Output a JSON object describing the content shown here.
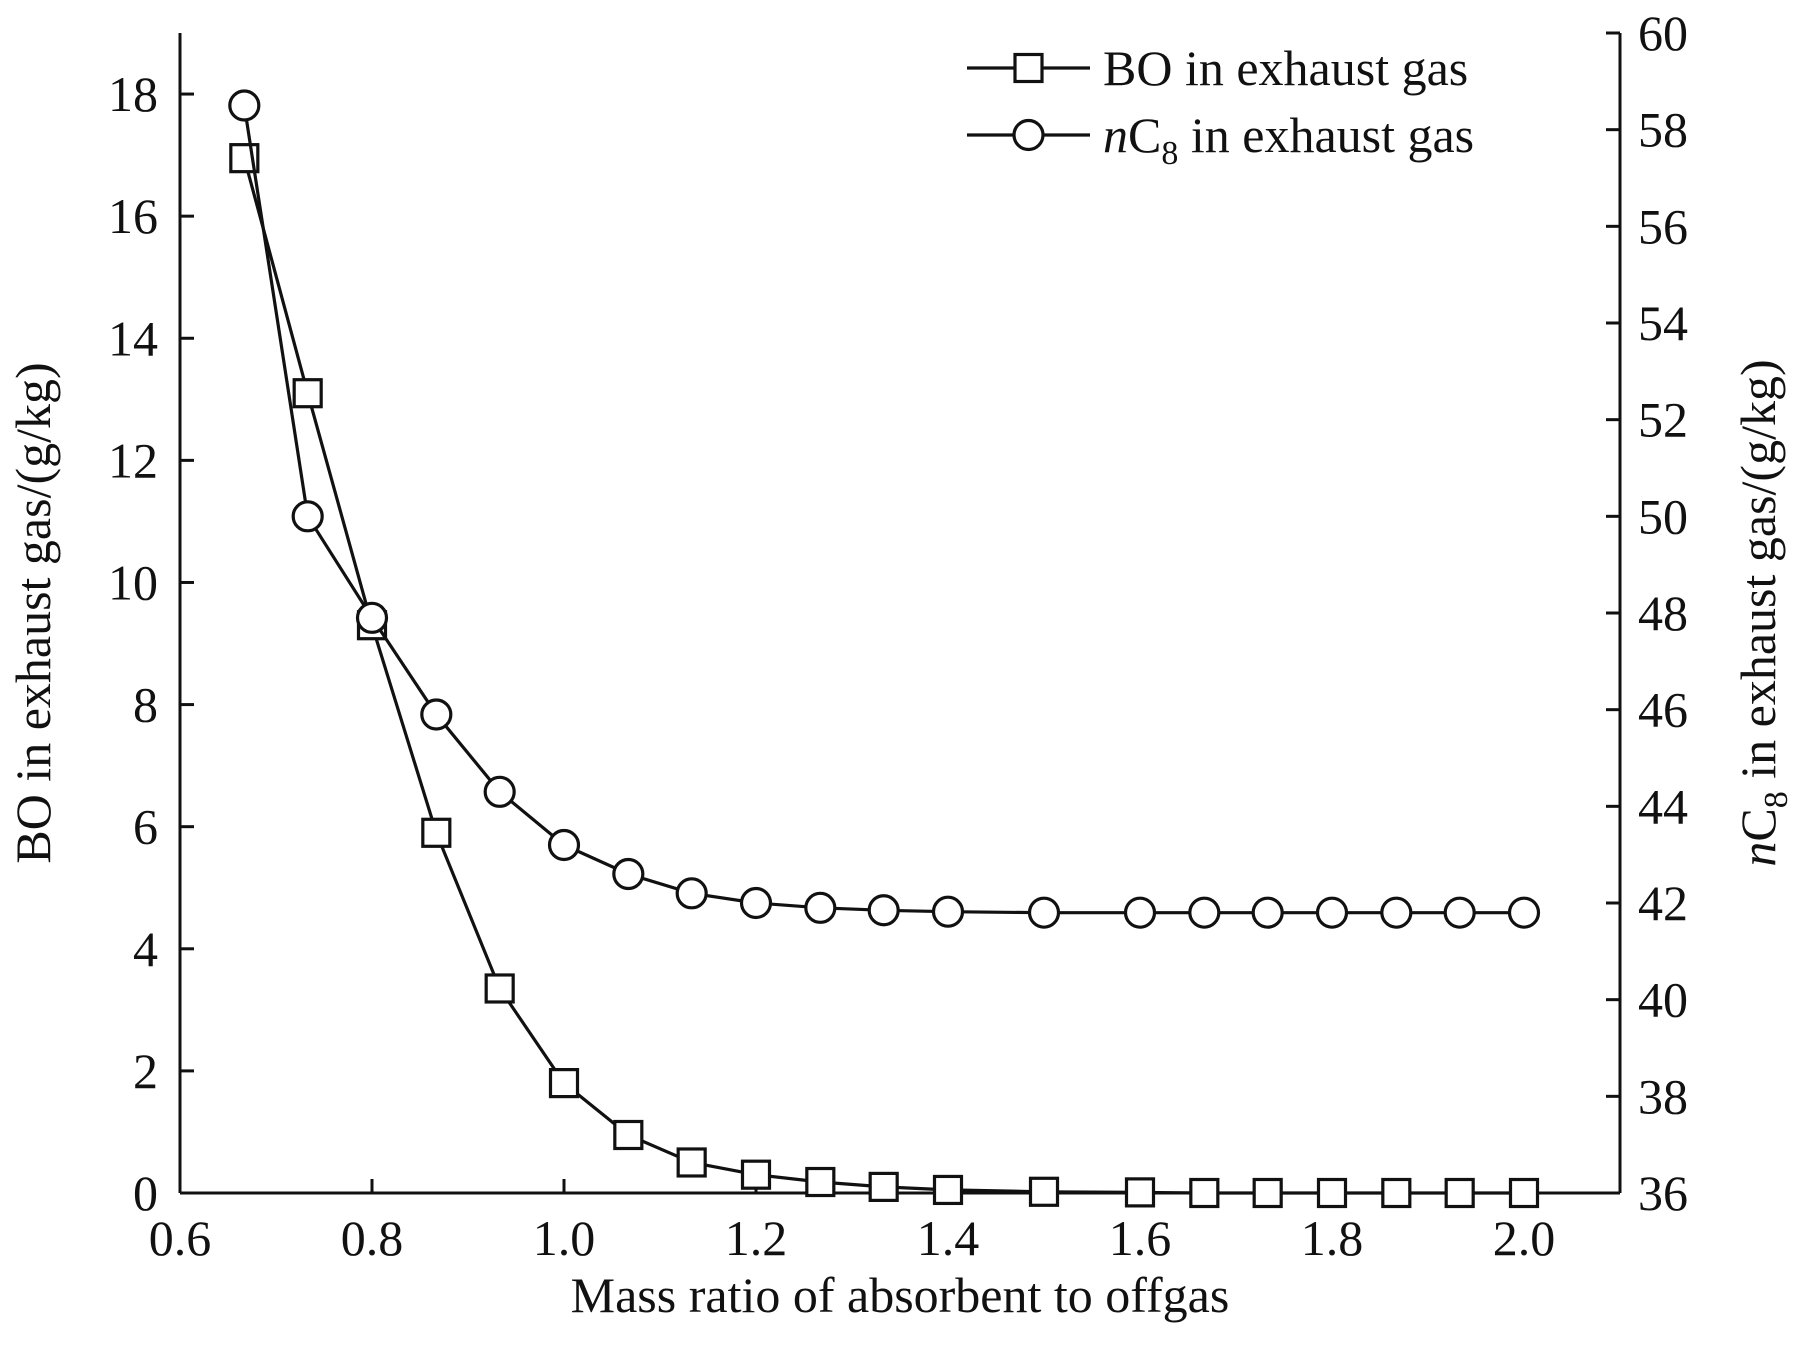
{
  "chart_data": {
    "type": "line",
    "xlabel": "Mass ratio of absorbent to offgas",
    "ylabel_left": "BO in exhaust gas/(g/kg)",
    "ylabel_right": {
      "italic": "n",
      "main": "C",
      "subscript": "8",
      "rest": " in exhaust gas/(g/kg)"
    },
    "xlim": [
      0.6,
      2.1
    ],
    "ylim_left": [
      0,
      19
    ],
    "ylim_right": [
      36,
      60
    ],
    "x_ticks": [
      "0.6",
      "0.8",
      "1.0",
      "1.2",
      "1.4",
      "1.6",
      "1.8",
      "2.0"
    ],
    "y_left_ticks": [
      "0",
      "2",
      "4",
      "6",
      "8",
      "10",
      "12",
      "14",
      "16",
      "18"
    ],
    "y_right_ticks": [
      "36",
      "38",
      "40",
      "42",
      "44",
      "46",
      "48",
      "50",
      "52",
      "54",
      "56",
      "58",
      "60"
    ],
    "legend": {
      "placement": "top-right",
      "entries": [
        {
          "marker": "square",
          "label": "BO in exhaust gas"
        },
        {
          "marker": "circle",
          "italic": "n",
          "main": "C",
          "subscript": "8",
          "rest": " in exhaust gas"
        }
      ]
    },
    "series": [
      {
        "name": "BO in exhaust gas",
        "axis": "left",
        "marker": "square",
        "x": [
          0.667,
          0.733,
          0.8,
          0.867,
          0.933,
          1.0,
          1.067,
          1.133,
          1.2,
          1.267,
          1.333,
          1.4,
          1.5,
          1.6,
          1.667,
          1.733,
          1.8,
          1.867,
          1.933,
          2.0
        ],
        "y": [
          16.95,
          13.1,
          9.3,
          5.9,
          3.35,
          1.8,
          0.95,
          0.5,
          0.3,
          0.18,
          0.1,
          0.05,
          0.02,
          0.01,
          0.0,
          0.0,
          0.0,
          0.0,
          0.0,
          0.0
        ]
      },
      {
        "name": "nC8 in exhaust gas",
        "axis": "right",
        "marker": "circle",
        "x": [
          0.667,
          0.733,
          0.8,
          0.867,
          0.933,
          1.0,
          1.067,
          1.133,
          1.2,
          1.267,
          1.333,
          1.4,
          1.5,
          1.6,
          1.667,
          1.733,
          1.8,
          1.867,
          1.933,
          2.0
        ],
        "y": [
          58.5,
          50.0,
          47.9,
          45.9,
          44.3,
          43.2,
          42.6,
          42.2,
          42.0,
          41.9,
          41.85,
          41.82,
          41.8,
          41.8,
          41.8,
          41.8,
          41.8,
          41.8,
          41.8,
          41.8
        ]
      }
    ]
  }
}
